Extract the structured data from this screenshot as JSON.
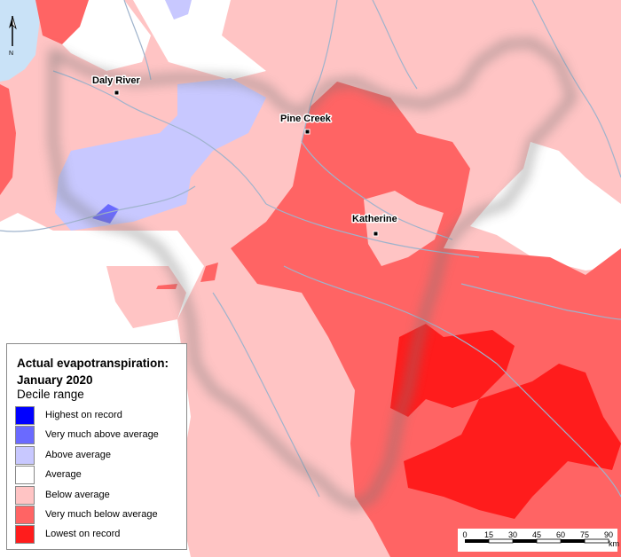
{
  "map": {
    "towns": [
      {
        "name": "Daly River"
      },
      {
        "name": "Pine Creek"
      },
      {
        "name": "Katherine"
      }
    ],
    "north_arrow_label": "N"
  },
  "legend": {
    "title": "Actual evapotranspiration: January 2020",
    "subtitle": "Decile range",
    "items": [
      {
        "label": "Highest on record",
        "color": "#0000ff"
      },
      {
        "label": "Very much above average",
        "color": "#6a6aff"
      },
      {
        "label": "Above average",
        "color": "#c8c8ff"
      },
      {
        "label": "Average",
        "color": "#ffffff"
      },
      {
        "label": "Below average",
        "color": "#ffc4c4"
      },
      {
        "label": "Very much below average",
        "color": "#ff6464"
      },
      {
        "label": "Lowest on record",
        "color": "#ff1c1c"
      }
    ]
  },
  "scale": {
    "ticks": [
      "0",
      "15",
      "30",
      "45",
      "60",
      "75",
      "90"
    ],
    "unit": "km"
  },
  "colors": {
    "sea": "#c9e2f7",
    "river": "#9fb3cc",
    "outside_mask": "#ffffff"
  }
}
